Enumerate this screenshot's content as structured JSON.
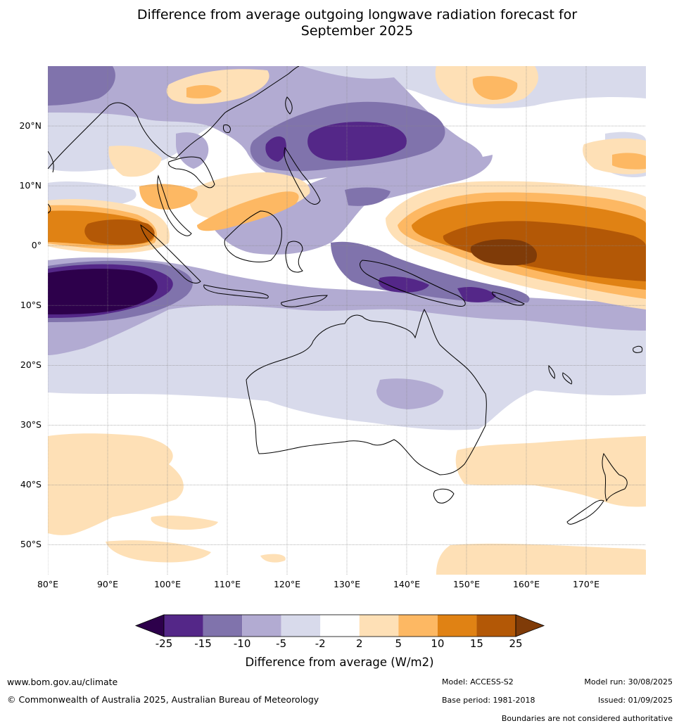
{
  "title": {
    "line1": "Difference from average outgoing longwave radiation forecast for",
    "line2": "September 2025"
  },
  "map": {
    "lat_range": [
      -55,
      30
    ],
    "lon_range": [
      80,
      180
    ],
    "lat_labels": [
      {
        "lat": 20,
        "text": "20°N"
      },
      {
        "lat": 10,
        "text": "10°N"
      },
      {
        "lat": 0,
        "text": "0°"
      },
      {
        "lat": -10,
        "text": "10°S"
      },
      {
        "lat": -20,
        "text": "20°S"
      },
      {
        "lat": -30,
        "text": "30°S"
      },
      {
        "lat": -40,
        "text": "40°S"
      },
      {
        "lat": -50,
        "text": "50°S"
      }
    ],
    "lon_labels": [
      {
        "lon": 80,
        "text": "80°E"
      },
      {
        "lon": 90,
        "text": "90°E"
      },
      {
        "lon": 100,
        "text": "100°E"
      },
      {
        "lon": 110,
        "text": "110°E"
      },
      {
        "lon": 120,
        "text": "120°E"
      },
      {
        "lon": 130,
        "text": "130°E"
      },
      {
        "lon": 140,
        "text": "140°E"
      },
      {
        "lon": 150,
        "text": "150°E"
      },
      {
        "lon": 160,
        "text": "160°E"
      },
      {
        "lon": 170,
        "text": "170°E"
      }
    ]
  },
  "colorbar": {
    "ticks": [
      "-25",
      "-15",
      "-10",
      "-5",
      "-2",
      "2",
      "5",
      "10",
      "15",
      "25"
    ],
    "colors": [
      "#2d004b",
      "#542788",
      "#8073ac",
      "#b2abd2",
      "#d8daeb",
      "#ffffff",
      "#fee0b6",
      "#fdb863",
      "#e08214",
      "#b35806",
      "#7f3b08"
    ],
    "label": "Difference from average (W/m2)"
  },
  "footer": {
    "website": "www.bom.gov.au/climate",
    "copyright": "© Commonwealth of Australia 2025, Australian Bureau of Meteorology",
    "model": "Model: ACCESS-S2",
    "base_period": "Base period: 1981-2018",
    "model_run": "Model run: 30/08/2025",
    "issued": "Issued: 01/09/2025",
    "boundaries": "Boundaries are not considered authoritative"
  }
}
